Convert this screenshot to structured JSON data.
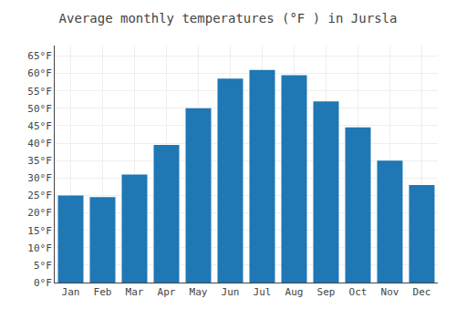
{
  "chart_data": {
    "type": "bar",
    "title": "Average monthly temperatures (°F ) in Jursla",
    "categories": [
      "Jan",
      "Feb",
      "Mar",
      "Apr",
      "May",
      "Jun",
      "Jul",
      "Aug",
      "Sep",
      "Oct",
      "Nov",
      "Dec"
    ],
    "values": [
      25,
      24.5,
      31,
      39.5,
      50,
      58.5,
      61,
      59.5,
      52,
      44.5,
      35,
      28
    ],
    "ylim": [
      0,
      68
    ],
    "yticks": [
      {
        "value": 0,
        "label": "0°F"
      },
      {
        "value": 5,
        "label": "5°F"
      },
      {
        "value": 10,
        "label": "10°F"
      },
      {
        "value": 15,
        "label": "15°F"
      },
      {
        "value": 20,
        "label": "20°F"
      },
      {
        "value": 25,
        "label": "25°F"
      },
      {
        "value": 30,
        "label": "30°F"
      },
      {
        "value": 35,
        "label": "35°F"
      },
      {
        "value": 40,
        "label": "40°F"
      },
      {
        "value": 45,
        "label": "45°F"
      },
      {
        "value": 50,
        "label": "50°F"
      },
      {
        "value": 55,
        "label": "55°F"
      },
      {
        "value": 60,
        "label": "60°F"
      },
      {
        "value": 65,
        "label": "65°F"
      }
    ],
    "grid": true
  }
}
